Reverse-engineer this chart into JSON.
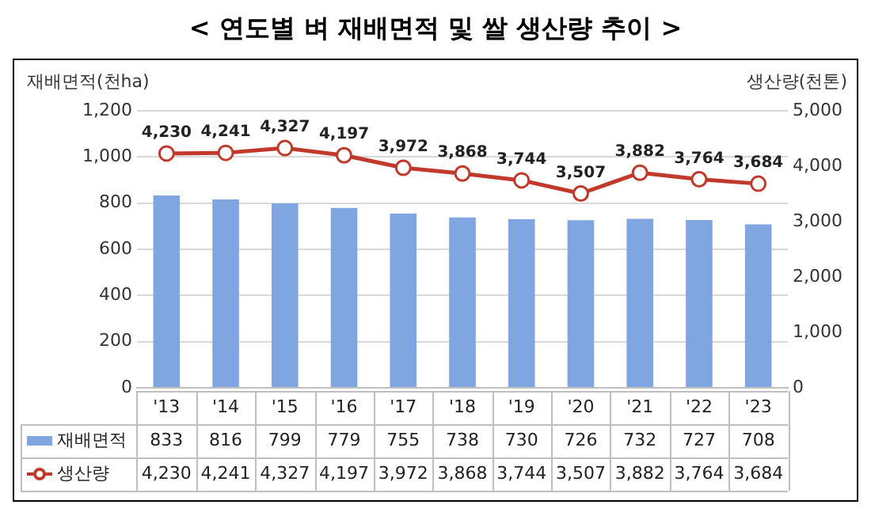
{
  "chart_data": {
    "type": "bar",
    "title": "< 연도별 벼 재배면적 및 쌀 생산량 추이 >",
    "ylabel": "재배면적(천ha)",
    "y2label": "생산량(천톤)",
    "categories": [
      "'13",
      "'14",
      "'15",
      "'16",
      "'17",
      "'18",
      "'19",
      "'20",
      "'21",
      "'22",
      "'23"
    ],
    "series": [
      {
        "name": "재배면적",
        "color": "#7fa6e0",
        "values": [
          833,
          816,
          799,
          779,
          755,
          738,
          730,
          726,
          732,
          727,
          708
        ]
      },
      {
        "name": "생산량",
        "type": "line",
        "axis": "y2",
        "color": "#c0392b",
        "marker": "circle",
        "values": [
          4230,
          4241,
          4327,
          4197,
          3972,
          3868,
          3744,
          3507,
          3882,
          3764,
          3684
        ],
        "value_labels": [
          "4,230",
          "4,241",
          "4,327",
          "4,197",
          "3,972",
          "3,868",
          "3,744",
          "3,507",
          "3,882",
          "3,764",
          "3,684"
        ]
      }
    ],
    "ylim": [
      0,
      1200
    ],
    "yticks": [
      0,
      {
        "value": 200,
        "label": "200"
      },
      {
        "value": 400,
        "label": "400"
      },
      {
        "value": 600,
        "label": "600"
      },
      {
        "value": 800,
        "label": "800"
      },
      {
        "value": 1000,
        "label": "1,000"
      },
      {
        "value": 1200,
        "label": "1,200"
      }
    ],
    "y2lim": [
      0,
      5000
    ],
    "y2ticks": [
      0,
      {
        "value": 1000,
        "label": "1,000"
      },
      {
        "value": 2000,
        "label": "2,000"
      },
      {
        "value": 3000,
        "label": "3,000"
      },
      {
        "value": 4000,
        "label": "4,000"
      },
      {
        "value": 5000,
        "label": "5,000"
      }
    ],
    "grid": "y",
    "legend": "bottom",
    "data_labels": true
  }
}
